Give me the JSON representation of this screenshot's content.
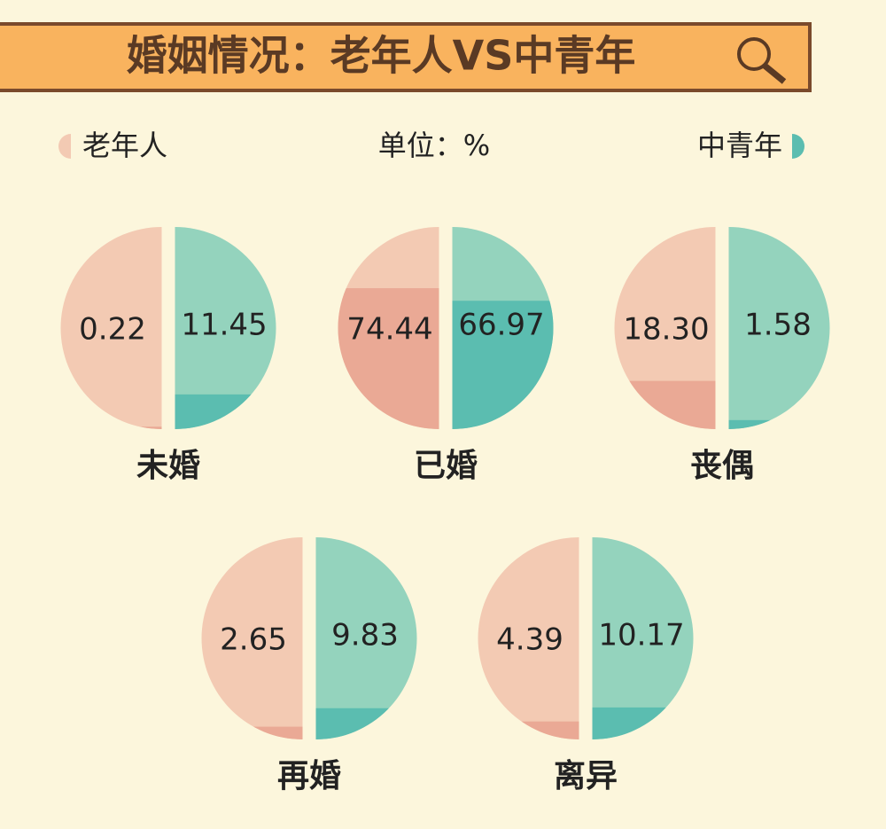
{
  "chart_data": {
    "type": "half-pie",
    "title": "婚姻情况：老年人VS中青年",
    "unit_label": "单位：%",
    "categories": [
      "未婚",
      "已婚",
      "丧偶",
      "再婚",
      "离异"
    ],
    "series": [
      {
        "name": "老年人",
        "color": "#eaa995",
        "track_color": "#f3cab3",
        "values": [
          0.22,
          74.44,
          18.3,
          2.65,
          4.39
        ],
        "value_labels": [
          "0.22",
          "74.44",
          "18.30",
          "2.65",
          "4.39"
        ]
      },
      {
        "name": "中青年",
        "color": "#5bbdb0",
        "track_color": "#94d3bd",
        "values": [
          11.45,
          66.97,
          1.58,
          9.83,
          10.17
        ],
        "value_labels": [
          "11.45",
          "66.97",
          "1.58",
          "9.83",
          "10.17"
        ]
      }
    ]
  }
}
